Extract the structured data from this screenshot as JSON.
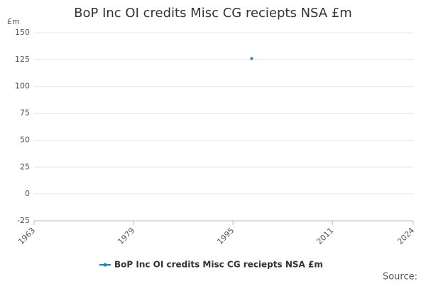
{
  "chart_data": {
    "type": "line",
    "title": "BoP Inc OI credits Misc CG reciepts NSA £m",
    "y_label": "£m",
    "source": "Source:",
    "x": [
      1998
    ],
    "series": [
      {
        "name": "BoP Inc OI credits Misc CG reciepts NSA £m",
        "color": "#1f7fb4",
        "values": [
          126
        ]
      }
    ],
    "xlim": [
      1963,
      2024
    ],
    "xticks": [
      1963,
      1979,
      1995,
      2011,
      2024
    ],
    "ylim": [
      -25,
      150
    ],
    "yticks": [
      -25,
      0,
      25,
      50,
      75,
      100,
      125,
      150
    ],
    "grid": true
  }
}
